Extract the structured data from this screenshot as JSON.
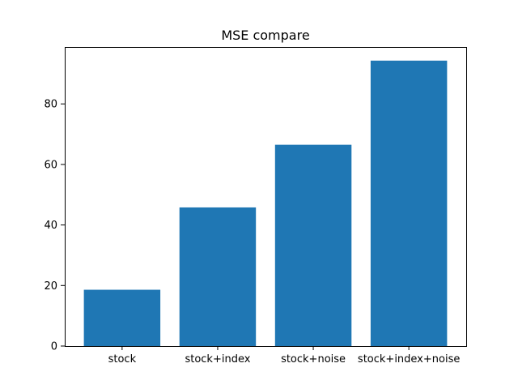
{
  "chart_data": {
    "type": "bar",
    "title": "MSE compare",
    "xlabel": "",
    "ylabel": "",
    "categories": [
      "stock",
      "stock+index",
      "stock+noise",
      "stock+index+noise"
    ],
    "values": [
      18.6,
      45.8,
      66.5,
      94.3
    ],
    "ylim": [
      0,
      98.8
    ],
    "yticks": [
      0,
      20,
      40,
      60,
      80
    ],
    "grid": false,
    "legend": "none",
    "bar_color": "#1f77b4"
  }
}
